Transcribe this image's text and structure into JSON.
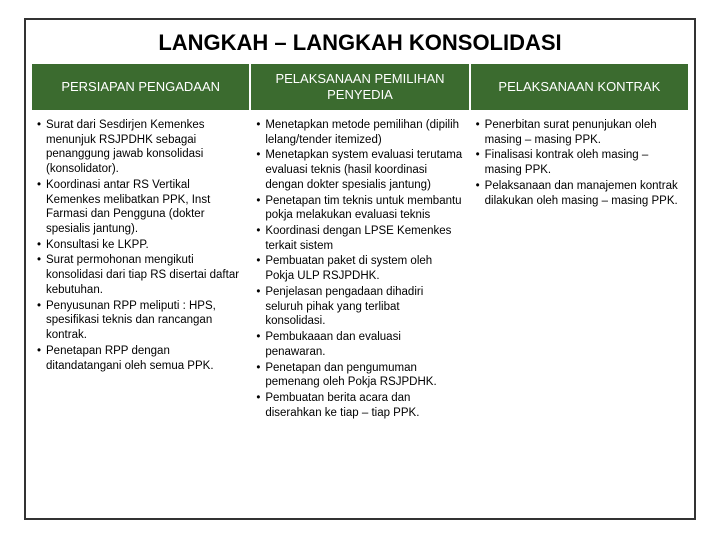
{
  "title": "LANGKAH – LANGKAH KONSOLIDASI",
  "columns": [
    {
      "header": "PERSIAPAN PENGADAAN",
      "items": [
        "Surat dari Sesdirjen Kemenkes menunjuk RSJPDHK sebagai penanggung jawab konsolidasi (konsolidator).",
        "Koordinasi antar RS Vertikal Kemenkes melibatkan PPK, Inst Farmasi dan Pengguna (dokter spesialis jantung).",
        "Konsultasi ke LKPP.",
        "Surat permohonan mengikuti konsolidasi dari tiap RS disertai daftar kebutuhan.",
        "Penyusunan RPP meliputi : HPS, spesifikasi teknis dan rancangan kontrak.",
        "Penetapan RPP dengan ditandatangani oleh semua PPK."
      ]
    },
    {
      "header": "PELAKSANAAN PEMILIHAN PENYEDIA",
      "items": [
        "Menetapkan metode pemilihan (dipilih lelang/tender itemized)",
        "Menetapkan system evaluasi terutama evaluasi teknis (hasil koordinasi dengan dokter spesialis jantung)",
        "Penetapan tim teknis untuk membantu pokja melakukan evaluasi teknis",
        "Koordinasi dengan LPSE Kemenkes terkait sistem",
        "Pembuatan paket di system oleh Pokja ULP RSJPDHK.",
        "Penjelasan pengadaan dihadiri seluruh pihak yang terlibat konsolidasi.",
        "Pembukaaan dan evaluasi penawaran.",
        "Penetapan dan pengumuman pemenang oleh Pokja RSJPDHK.",
        "Pembuatan berita acara dan diserahkan ke tiap – tiap PPK."
      ]
    },
    {
      "header": "PELAKSANAAN KONTRAK",
      "items": [
        "Penerbitan surat penunjukan oleh masing – masing PPK.",
        "Finalisasi kontrak oleh masing – masing PPK.",
        "Pelaksanaan dan manajemen kontrak dilakukan oleh masing – masing PPK."
      ]
    }
  ]
}
